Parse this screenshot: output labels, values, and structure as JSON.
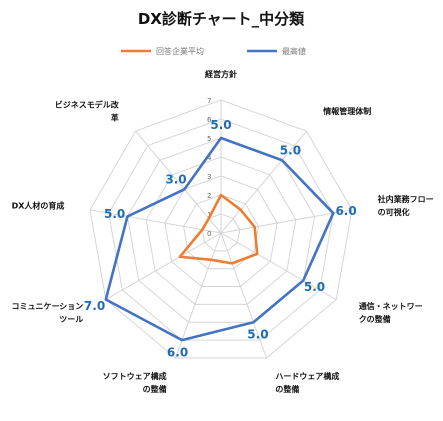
{
  "chart_data": {
    "type": "radar",
    "title": "DX診断チャート_中分類",
    "categories": [
      "経営方針",
      "情報管理体制",
      "社内業務フロー\nの可視化",
      "通信・ネットワー\nクの整備",
      "ハードウェア構成\nの整備",
      "ソフトウェア構成\nの整備",
      "コミュニケーション\nツール",
      "DX人材の育成",
      "ビジネスモデル改\n革"
    ],
    "series": [
      {
        "name": "回答企業平均",
        "color": "#ed7d31",
        "values": [
          2.0,
          1.6,
          1.8,
          2.2,
          1.7,
          1.5,
          2.5,
          1.0,
          1.0
        ]
      },
      {
        "name": "最高値",
        "color": "#4472c4",
        "values": [
          5.0,
          5.0,
          6.0,
          5.0,
          5.0,
          6.0,
          7.0,
          5.0,
          3.0
        ]
      }
    ],
    "value_labels": [
      "5.0",
      "5.0",
      "6.0",
      "5.0",
      "5.0",
      "6.0",
      "7.0",
      "5.0",
      "3.0"
    ],
    "ticks": [
      "0",
      "1",
      "2",
      "3",
      "4",
      "5",
      "6",
      "7"
    ],
    "rlim": [
      0,
      7
    ],
    "legend_position": "top",
    "value_label_color": "#1f6cb5"
  }
}
